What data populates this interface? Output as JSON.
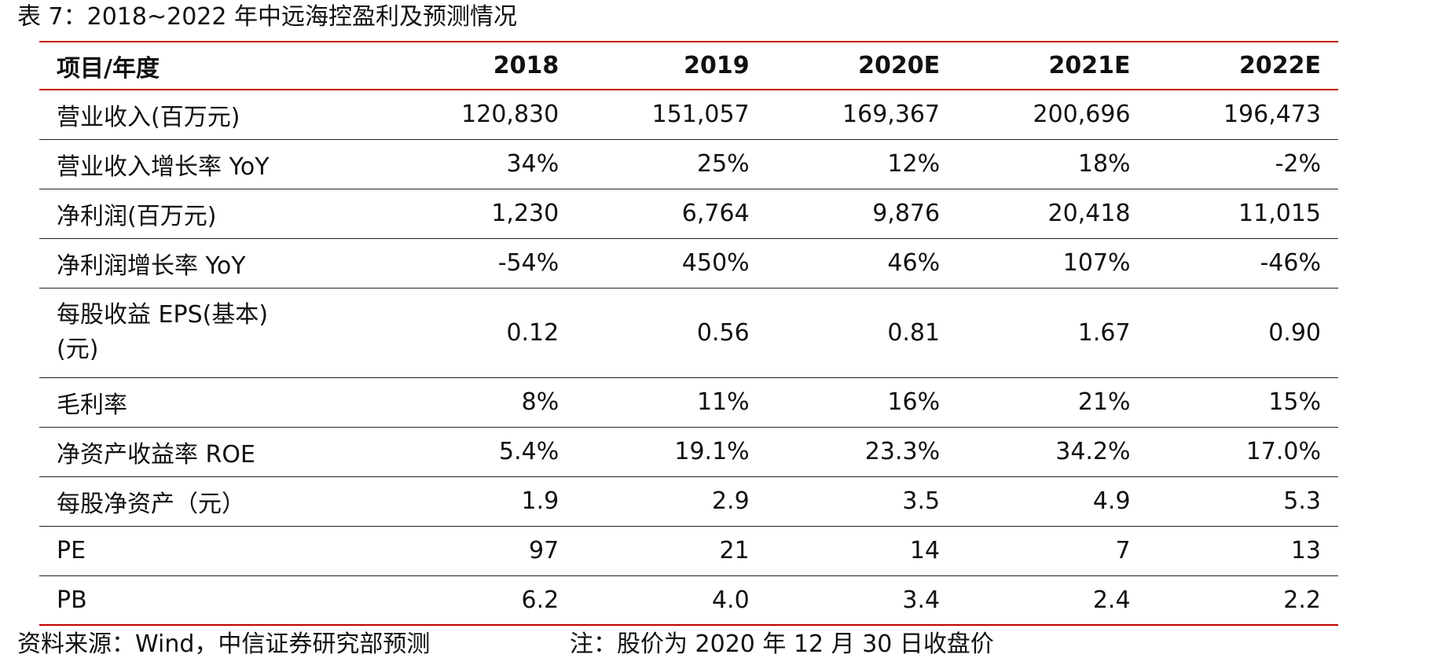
{
  "caption": "表 7：2018~2022 年中远海控盈利及预测情况",
  "table": {
    "headers": [
      "项目/年度",
      "2018",
      "2019",
      "2020E",
      "2021E",
      "2022E"
    ],
    "rows": [
      {
        "label": "营业收入(百万元)",
        "values": [
          "120,830",
          "151,057",
          "169,367",
          "200,696",
          "196,473"
        ]
      },
      {
        "label": "营业收入增长率 YoY",
        "values": [
          "34%",
          "25%",
          "12%",
          "18%",
          "-2%"
        ]
      },
      {
        "label": "净利润(百万元)",
        "values": [
          "1,230",
          "6,764",
          "9,876",
          "20,418",
          "11,015"
        ]
      },
      {
        "label": "净利润增长率 YoY",
        "values": [
          "-54%",
          "450%",
          "46%",
          "107%",
          "-46%"
        ]
      },
      {
        "label": "每股收益 EPS(基本)(元)",
        "values": [
          "0.12",
          "0.56",
          "0.81",
          "1.67",
          "0.90"
        ]
      },
      {
        "label": "毛利率",
        "values": [
          "8%",
          "11%",
          "16%",
          "21%",
          "15%"
        ]
      },
      {
        "label": "净资产收益率 ROE",
        "values": [
          "5.4%",
          "19.1%",
          "23.3%",
          "34.2%",
          "17.0%"
        ]
      },
      {
        "label": "每股净资产（元）",
        "values": [
          "1.9",
          "2.9",
          "3.5",
          "4.9",
          "5.3"
        ]
      },
      {
        "label": "PE",
        "values": [
          "97",
          "21",
          "14",
          "7",
          "13"
        ]
      },
      {
        "label": "PB",
        "values": [
          "6.2",
          "4.0",
          "3.4",
          "2.4",
          "2.2"
        ]
      }
    ]
  },
  "source": "资料来源：Wind，中信证券研究部预测",
  "note": "注：股价为 2020 年 12 月 30 日收盘价",
  "colors": {
    "rule_red": "#c00000",
    "rule_dark": "#222222",
    "text": "#111111"
  }
}
